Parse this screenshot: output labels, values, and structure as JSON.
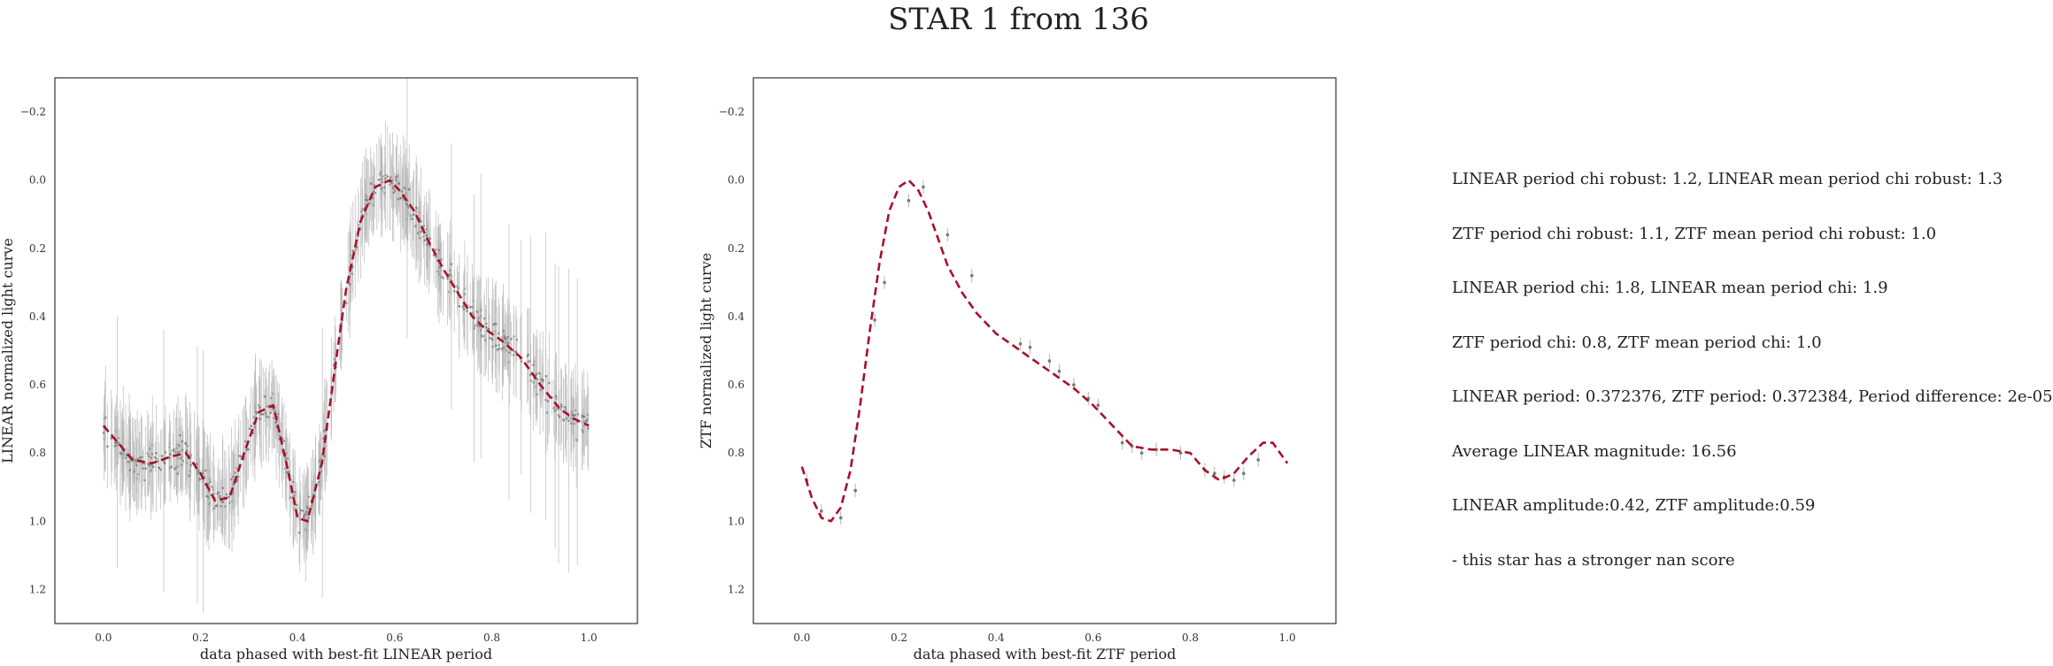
{
  "figure": {
    "title": "STAR 1 from 136"
  },
  "colors": {
    "fit": "#a5122a",
    "data": "#777777",
    "error": "#b5b5b5",
    "frame": "#333333"
  },
  "chart_data": [
    {
      "type": "scatter",
      "name": "LINEAR",
      "xlabel": "data phased with best-fit LINEAR period",
      "ylabel": "LINEAR normalized light curve",
      "xlim": [
        -0.1,
        1.1
      ],
      "ylim": [
        1.3,
        -0.3
      ],
      "y_inverted": true,
      "xticks": [
        0.0,
        0.2,
        0.4,
        0.6,
        0.8,
        1.0
      ],
      "xtick_labels": [
        "0.0",
        "0.2",
        "0.4",
        "0.6",
        "0.8",
        "1.0"
      ],
      "yticks": [
        -0.2,
        0.0,
        0.2,
        0.4,
        0.6,
        0.8,
        1.0,
        1.2
      ],
      "ytick_labels": [
        "−0.2",
        "0.0",
        "0.2",
        "0.4",
        "0.6",
        "0.8",
        "1.0",
        "1.2"
      ],
      "fit": {
        "style": "dashed",
        "x": [
          0.0,
          0.03,
          0.06,
          0.1,
          0.14,
          0.17,
          0.2,
          0.23,
          0.26,
          0.29,
          0.32,
          0.35,
          0.38,
          0.4,
          0.42,
          0.45,
          0.48,
          0.5,
          0.53,
          0.56,
          0.59,
          0.61,
          0.64,
          0.67,
          0.7,
          0.73,
          0.76,
          0.79,
          0.82,
          0.86,
          0.9,
          0.94,
          0.97,
          1.0
        ],
        "y": [
          0.72,
          0.77,
          0.82,
          0.83,
          0.81,
          0.8,
          0.86,
          0.94,
          0.93,
          0.8,
          0.68,
          0.66,
          0.85,
          0.99,
          1.0,
          0.83,
          0.52,
          0.32,
          0.12,
          0.02,
          0.0,
          0.03,
          0.09,
          0.18,
          0.26,
          0.33,
          0.4,
          0.44,
          0.47,
          0.52,
          0.6,
          0.67,
          0.7,
          0.72
        ]
      }
    },
    {
      "type": "scatter",
      "name": "ZTF",
      "xlabel": "data phased with best-fit ZTF period",
      "ylabel": "ZTF normalized light curve",
      "xlim": [
        -0.1,
        1.1
      ],
      "ylim": [
        1.3,
        -0.3
      ],
      "y_inverted": true,
      "xticks": [
        0.0,
        0.2,
        0.4,
        0.6,
        0.8,
        1.0
      ],
      "xtick_labels": [
        "0.0",
        "0.2",
        "0.4",
        "0.6",
        "0.8",
        "1.0"
      ],
      "yticks": [
        -0.2,
        0.0,
        0.2,
        0.4,
        0.6,
        0.8,
        1.0,
        1.2
      ],
      "ytick_labels": [
        "−0.2",
        "0.0",
        "0.2",
        "0.4",
        "0.6",
        "0.8",
        "1.0",
        "1.2"
      ],
      "fit": {
        "style": "dashed",
        "x": [
          0.0,
          0.02,
          0.04,
          0.06,
          0.08,
          0.1,
          0.12,
          0.14,
          0.16,
          0.18,
          0.2,
          0.22,
          0.24,
          0.26,
          0.28,
          0.3,
          0.33,
          0.36,
          0.4,
          0.44,
          0.48,
          0.52,
          0.56,
          0.6,
          0.64,
          0.68,
          0.72,
          0.76,
          0.8,
          0.83,
          0.86,
          0.89,
          0.92,
          0.95,
          0.97,
          1.0
        ],
        "y": [
          0.84,
          0.93,
          0.99,
          1.0,
          0.96,
          0.85,
          0.66,
          0.44,
          0.24,
          0.09,
          0.02,
          0.0,
          0.03,
          0.09,
          0.17,
          0.25,
          0.33,
          0.39,
          0.45,
          0.49,
          0.53,
          0.57,
          0.61,
          0.66,
          0.72,
          0.78,
          0.79,
          0.79,
          0.8,
          0.85,
          0.88,
          0.86,
          0.81,
          0.77,
          0.77,
          0.83
        ]
      },
      "points": {
        "x": [
          0.01,
          0.04,
          0.08,
          0.11,
          0.15,
          0.17,
          0.22,
          0.25,
          0.3,
          0.35,
          0.45,
          0.47,
          0.51,
          0.53,
          0.56,
          0.59,
          0.61,
          0.66,
          0.68,
          0.7,
          0.73,
          0.78,
          0.83,
          0.85,
          0.87,
          0.89,
          0.91,
          0.94
        ],
        "y": [
          0.88,
          0.97,
          0.99,
          0.91,
          0.41,
          0.3,
          0.06,
          0.02,
          0.16,
          0.28,
          0.48,
          0.49,
          0.53,
          0.56,
          0.6,
          0.64,
          0.66,
          0.77,
          0.78,
          0.8,
          0.79,
          0.8,
          0.85,
          0.86,
          0.87,
          0.88,
          0.86,
          0.82
        ],
        "err": [
          0.02,
          0.02,
          0.02,
          0.02,
          0.02,
          0.02,
          0.02,
          0.02,
          0.02,
          0.02,
          0.02,
          0.02,
          0.02,
          0.02,
          0.02,
          0.02,
          0.02,
          0.02,
          0.02,
          0.02,
          0.02,
          0.02,
          0.02,
          0.02,
          0.02,
          0.02,
          0.02,
          0.02
        ]
      }
    }
  ],
  "info_lines": [
    "LINEAR period chi robust: 1.2, LINEAR mean period chi robust: 1.3",
    "ZTF period chi robust: 1.1, ZTF mean period chi robust: 1.0",
    "LINEAR period chi: 1.8, LINEAR mean period chi: 1.9",
    "ZTF period chi: 0.8, ZTF mean period chi: 1.0",
    "LINEAR period: 0.372376, ZTF period: 0.372384, Period difference: 2e-05",
    "Average LINEAR magnitude: 16.56",
    "LINEAR amplitude:0.42, ZTF amplitude:0.59",
    "- this star has a stronger nan score"
  ]
}
